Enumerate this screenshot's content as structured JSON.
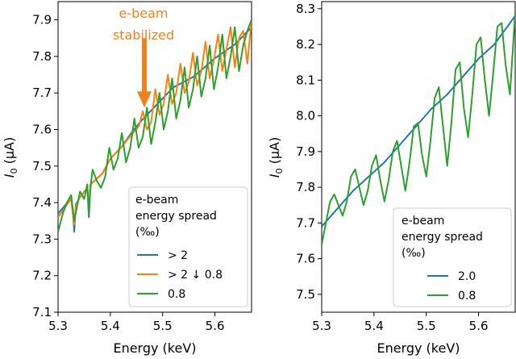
{
  "chart_data": [
    {
      "type": "line",
      "panel": "left",
      "title": "",
      "xlabel": "Energy (keV)",
      "ylabel": "I",
      "ylabel_sub": "0",
      "ylabel_unit": " (μA)",
      "xlim": [
        5.3,
        5.67
      ],
      "ylim": [
        7.1,
        7.95
      ],
      "xticks": [
        5.3,
        5.4,
        5.5,
        5.6
      ],
      "xtick_labels": [
        "5.3",
        "5.4",
        "5.5",
        "5.6"
      ],
      "yticks": [
        7.1,
        7.2,
        7.3,
        7.4,
        7.5,
        7.6,
        7.7,
        7.8,
        7.9
      ],
      "ytick_labels": [
        "7.1",
        "7.2",
        "7.3",
        "7.4",
        "7.5",
        "7.6",
        "7.7",
        "7.8",
        "7.9"
      ],
      "grid": false,
      "legend": {
        "title_lines": [
          "e-beam",
          "energy spread",
          "(‰)"
        ],
        "location": "lower-right",
        "entries": [
          {
            "label": "> 2",
            "color": "#1f77b4"
          },
          {
            "label": "> 2 ↓ 0.8",
            "color": "#ff7f0e"
          },
          {
            "label": "0.8",
            "color": "#2ca02c"
          }
        ]
      },
      "annotation": {
        "lines": [
          "e-beam",
          "stabilized"
        ],
        "color": "#f0821e",
        "arrow_from": [
          5.465,
          7.85
        ],
        "arrow_to": [
          5.465,
          7.66
        ]
      },
      "series": [
        {
          "name": "> 2",
          "color": "#1f77b4",
          "x": [
            5.3,
            5.315,
            5.325,
            5.328,
            5.331,
            5.334,
            5.34,
            5.35,
            5.356,
            5.359,
            5.362,
            5.37,
            5.385,
            5.4,
            5.42,
            5.44,
            5.46,
            5.48,
            5.5,
            5.52,
            5.54,
            5.56,
            5.58,
            5.6,
            5.62,
            5.64,
            5.66,
            5.67
          ],
          "y": [
            7.37,
            7.395,
            7.42,
            7.38,
            7.32,
            7.395,
            7.41,
            7.43,
            7.44,
            7.36,
            7.45,
            7.46,
            7.48,
            7.52,
            7.55,
            7.59,
            7.625,
            7.655,
            7.685,
            7.715,
            7.73,
            7.745,
            7.77,
            7.795,
            7.815,
            7.835,
            7.865,
            7.88
          ]
        },
        {
          "name": "> 2 ↓ 0.8",
          "color": "#ff7f0e",
          "x": [
            5.3,
            5.315,
            5.325,
            5.328,
            5.331,
            5.334,
            5.34,
            5.35,
            5.356,
            5.359,
            5.362,
            5.37,
            5.385,
            5.4,
            5.42,
            5.44,
            5.455,
            5.462,
            5.47,
            5.478,
            5.486,
            5.494,
            5.502,
            5.51,
            5.518,
            5.526,
            5.534,
            5.542,
            5.55,
            5.558,
            5.566,
            5.574,
            5.582,
            5.59,
            5.598,
            5.606,
            5.614,
            5.622,
            5.63,
            5.638,
            5.646,
            5.654,
            5.662,
            5.67
          ],
          "y": [
            7.36,
            7.39,
            7.41,
            7.37,
            7.34,
            7.39,
            7.41,
            7.43,
            7.44,
            7.38,
            7.45,
            7.46,
            7.48,
            7.52,
            7.55,
            7.585,
            7.61,
            7.65,
            7.6,
            7.62,
            7.71,
            7.64,
            7.67,
            7.75,
            7.67,
            7.7,
            7.78,
            7.7,
            7.73,
            7.81,
            7.72,
            7.76,
            7.84,
            7.74,
            7.79,
            7.86,
            7.76,
            7.82,
            7.88,
            7.77,
            7.85,
            7.87,
            7.78,
            7.9
          ]
        },
        {
          "name": "0.8",
          "color": "#2ca02c",
          "x": [
            5.3,
            5.309,
            5.317,
            5.325,
            5.331,
            5.335,
            5.342,
            5.35,
            5.356,
            5.359,
            5.362,
            5.366,
            5.374,
            5.382,
            5.39,
            5.398,
            5.406,
            5.414,
            5.422,
            5.43,
            5.438,
            5.446,
            5.454,
            5.462,
            5.47,
            5.478,
            5.486,
            5.494,
            5.502,
            5.51,
            5.518,
            5.526,
            5.534,
            5.542,
            5.55,
            5.558,
            5.566,
            5.574,
            5.582,
            5.59,
            5.598,
            5.606,
            5.614,
            5.622,
            5.63,
            5.638,
            5.646,
            5.654,
            5.662,
            5.67
          ],
          "y": [
            7.32,
            7.37,
            7.4,
            7.42,
            7.35,
            7.38,
            7.43,
            7.41,
            7.45,
            7.37,
            7.44,
            7.49,
            7.46,
            7.44,
            7.47,
            7.55,
            7.49,
            7.52,
            7.59,
            7.51,
            7.55,
            7.63,
            7.55,
            7.58,
            7.66,
            7.56,
            7.62,
            7.7,
            7.6,
            7.65,
            7.74,
            7.63,
            7.68,
            7.77,
            7.66,
            7.71,
            7.8,
            7.69,
            7.74,
            7.83,
            7.71,
            7.77,
            7.86,
            7.74,
            7.8,
            7.88,
            7.76,
            7.83,
            7.87,
            7.9
          ]
        }
      ]
    },
    {
      "type": "line",
      "panel": "right",
      "title": "",
      "xlabel": "Energy (keV)",
      "ylabel": "I",
      "ylabel_sub": "0",
      "ylabel_unit": " (μA)",
      "xlim": [
        5.3,
        5.67
      ],
      "ylim": [
        7.45,
        8.32
      ],
      "xticks": [
        5.3,
        5.4,
        5.5,
        5.6
      ],
      "xtick_labels": [
        "5.3",
        "5.4",
        "5.5",
        "5.6"
      ],
      "yticks": [
        7.5,
        7.6,
        7.7,
        7.8,
        7.9,
        8.0,
        8.1,
        8.2,
        8.3
      ],
      "ytick_labels": [
        "7.5",
        "7.6",
        "7.7",
        "7.8",
        "7.9",
        "8.0",
        "8.1",
        "8.2",
        "8.3"
      ],
      "grid": false,
      "legend": {
        "title_lines": [
          "e-beam",
          "energy spread",
          "(‰)"
        ],
        "location": "lower-right",
        "entries": [
          {
            "label": "2.0",
            "color": "#1f77b4"
          },
          {
            "label": "0.8",
            "color": "#2ca02c"
          }
        ]
      },
      "series": [
        {
          "name": "2.0",
          "color": "#1f77b4",
          "x": [
            5.3,
            5.33,
            5.36,
            5.39,
            5.42,
            5.45,
            5.48,
            5.51,
            5.54,
            5.57,
            5.6,
            5.63,
            5.67
          ],
          "y": [
            7.69,
            7.74,
            7.79,
            7.83,
            7.87,
            7.92,
            7.97,
            8.02,
            8.06,
            8.11,
            8.16,
            8.2,
            8.28
          ]
        },
        {
          "name": "0.8",
          "color": "#2ca02c",
          "x": [
            5.3,
            5.308,
            5.316,
            5.324,
            5.332,
            5.34,
            5.348,
            5.356,
            5.364,
            5.372,
            5.38,
            5.388,
            5.396,
            5.404,
            5.412,
            5.42,
            5.428,
            5.436,
            5.444,
            5.452,
            5.46,
            5.468,
            5.476,
            5.484,
            5.492,
            5.5,
            5.508,
            5.516,
            5.524,
            5.532,
            5.54,
            5.548,
            5.556,
            5.564,
            5.572,
            5.58,
            5.588,
            5.596,
            5.604,
            5.612,
            5.62,
            5.628,
            5.636,
            5.644,
            5.652,
            5.66,
            5.67
          ],
          "y": [
            7.64,
            7.7,
            7.76,
            7.78,
            7.75,
            7.72,
            7.76,
            7.83,
            7.85,
            7.8,
            7.75,
            7.79,
            7.86,
            7.89,
            7.82,
            7.76,
            7.82,
            7.9,
            7.93,
            7.86,
            7.79,
            7.87,
            7.97,
            7.98,
            7.89,
            7.83,
            7.93,
            8.05,
            8.08,
            7.97,
            7.86,
            7.98,
            8.13,
            8.15,
            8.02,
            7.94,
            8.06,
            8.2,
            8.22,
            8.1,
            8.0,
            8.12,
            8.25,
            8.26,
            8.14,
            8.06,
            8.29
          ]
        }
      ]
    }
  ]
}
